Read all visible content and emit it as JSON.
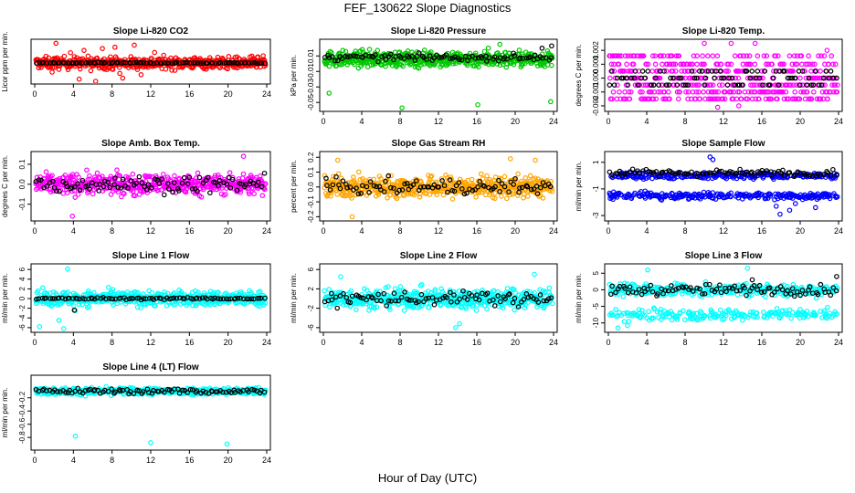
{
  "figure": {
    "title": "FEF_130622  Slope Diagnostics",
    "xlabel": "Hour of Day (UTC)"
  },
  "chart_data": [
    {
      "type": "scatter",
      "title": "Slope Li-820 CO2",
      "ylabel": "Licor ppm per min.",
      "xlim": [
        0,
        24
      ],
      "ylim": [
        -7,
        8
      ],
      "xticks": [
        0,
        4,
        8,
        12,
        16,
        20,
        24
      ],
      "yticks": [],
      "ytick_labels": [],
      "series": [
        {
          "color": "#ff0000",
          "spread": 2.2,
          "x": [
            2.2,
            4.6,
            5.1,
            6.3,
            7.0,
            8.3,
            9.1,
            10.3,
            11.0,
            12.4,
            1.8,
            3.7,
            5.8,
            8.8
          ],
          "y": [
            7.5,
            -6.2,
            4.8,
            -7.0,
            5.5,
            6.0,
            -5.8,
            6.8,
            -4.5,
            4.0,
            -3.5,
            3.9,
            -3.0,
            -4.0
          ]
        },
        {
          "color": "#000000",
          "spread": 0.2,
          "x": [
            4.0,
            12.0,
            20.0
          ],
          "y": [
            0,
            0,
            0
          ]
        }
      ]
    },
    {
      "type": "scatter",
      "title": "Slope Li-820 Pressure",
      "ylabel": "kPa per min.",
      "xlim": [
        0,
        24
      ],
      "ylim": [
        -0.058,
        0.028
      ],
      "xticks": [
        0,
        4,
        8,
        12,
        16,
        20,
        24
      ],
      "yticks": [
        -0.05,
        -0.03,
        -0.01,
        0.01
      ],
      "ytick_labels": [
        "-0.05",
        "-0.03",
        "-0.01",
        "0.01"
      ],
      "series": [
        {
          "color": "#00c800",
          "spread": 0.01,
          "x": [
            0.6,
            8.2,
            16.1,
            18.4,
            23.7,
            17.2
          ],
          "y": [
            -0.038,
            -0.057,
            -0.053,
            0.025,
            -0.049,
            0.02
          ],
          "center": 0.006
        },
        {
          "color": "#000000",
          "spread": 0.004,
          "x": [
            23.8,
            22.8
          ],
          "y": [
            0.023,
            0.02
          ],
          "center": 0.008
        }
      ]
    },
    {
      "type": "scatter",
      "title": "Slope Li-820 Temp.",
      "ylabel": "degrees C per min.",
      "xlim": [
        0,
        24
      ],
      "ylim": [
        -0.0022,
        0.0026
      ],
      "xticks": [
        0,
        4,
        8,
        12,
        16,
        20,
        24
      ],
      "yticks": [
        -0.002,
        -0.001,
        0,
        0.001,
        0.002
      ],
      "ytick_labels": [
        "-0.002",
        "-0.001",
        "0.000",
        "0.001",
        "0.002"
      ],
      "series": [
        {
          "color": "#ff00ff",
          "levels": [
            -0.0015,
            -0.001,
            -0.0005,
            0,
            0.0005,
            0.001,
            0.0016
          ],
          "x": [
            10.0,
            12.8,
            15.3,
            11.4,
            22.8,
            13.6
          ],
          "y": [
            0.0025,
            0.0025,
            0.0025,
            -0.0021,
            0.002,
            -0.002
          ]
        },
        {
          "color": "#000000",
          "levels": [
            -0.0005,
            0,
            0.0005
          ],
          "x": [],
          "y": []
        }
      ]
    },
    {
      "type": "scatter",
      "title": "Slope Amb. Box Temp.",
      "ylabel": "degrees C per min.",
      "xlim": [
        0,
        24
      ],
      "ylim": [
        -0.17,
        0.15
      ],
      "xticks": [
        0,
        4,
        8,
        12,
        16,
        20,
        24
      ],
      "yticks": [
        -0.1,
        0,
        0.1
      ],
      "ytick_labels": [
        "-0.1",
        "0.0",
        "0.1"
      ],
      "series": [
        {
          "color": "#ff00ff",
          "spread": 0.05,
          "x": [
            3.9,
            21.6
          ],
          "y": [
            -0.16,
            0.14
          ]
        },
        {
          "color": "#000000",
          "spread": 0.04,
          "x": [],
          "y": []
        }
      ]
    },
    {
      "type": "scatter",
      "title": "Slope Gas Stream RH",
      "ylabel": "percent per min.",
      "xlim": [
        0,
        24
      ],
      "ylim": [
        -0.21,
        0.22
      ],
      "xticks": [
        0,
        4,
        8,
        12,
        16,
        20,
        24
      ],
      "yticks": [
        -0.2,
        -0.1,
        0,
        0.1,
        0.2
      ],
      "ytick_labels": [
        "-0.2",
        "-0.1",
        "0.0",
        "0.1",
        "0.2"
      ],
      "series": [
        {
          "color": "#ffa500",
          "spread": 0.07,
          "x": [
            3.0,
            1.5,
            19.5,
            22.1
          ],
          "y": [
            -0.2,
            0.18,
            0.19,
            0.18
          ]
        },
        {
          "color": "#000000",
          "spread": 0.05,
          "x": [],
          "y": []
        }
      ]
    },
    {
      "type": "scatter",
      "title": "Slope Sample Flow",
      "ylabel": "ml/min per min.",
      "xlim": [
        0,
        24
      ],
      "ylim": [
        -3.2,
        1.6
      ],
      "xticks": [
        0,
        4,
        8,
        12,
        16,
        20,
        24
      ],
      "yticks": [
        -3,
        -1,
        1
      ],
      "ytick_labels": [
        "-3",
        "-1",
        "1"
      ],
      "series": [
        {
          "color": "#0000ff",
          "bands": [
            0,
            -1.5
          ],
          "spread": 0.25,
          "x": [
            10.6,
            10.9,
            17.9,
            18.9,
            19.5,
            21.6,
            17.5
          ],
          "y": [
            1.4,
            1.2,
            -2.9,
            -2.6,
            -2.1,
            -2.4,
            -2.3
          ]
        },
        {
          "color": "#000000",
          "bands": [
            0.2
          ],
          "spread": 0.25,
          "x": [],
          "y": []
        }
      ]
    },
    {
      "type": "scatter",
      "title": "Slope Line 1 Flow",
      "ylabel": "ml/min per min.",
      "xlim": [
        0,
        24
      ],
      "ylim": [
        -6.4,
        6.6
      ],
      "xticks": [
        0,
        4,
        8,
        12,
        16,
        20,
        24
      ],
      "yticks": [
        -6,
        -4,
        -2,
        0,
        2,
        4,
        6
      ],
      "ytick_labels": [
        "-6",
        "-4",
        "-2",
        "0",
        "2",
        "4",
        "6"
      ],
      "series": [
        {
          "color": "#00ffff",
          "spread": 1.5,
          "x": [
            3.4,
            3.0,
            0.5,
            2.5,
            4.2
          ],
          "y": [
            6.1,
            -6.2,
            -5.8,
            -4.5,
            -2.5
          ]
        },
        {
          "color": "#000000",
          "spread": 0.2,
          "x": [
            4.1
          ],
          "y": [
            -2.4
          ]
        }
      ]
    },
    {
      "type": "scatter",
      "title": "Slope Line 2 Flow",
      "ylabel": "ml/min per min.",
      "xlim": [
        0,
        24
      ],
      "ylim": [
        -6.4,
        6.6
      ],
      "xticks": [
        0,
        4,
        8,
        12,
        16,
        20,
        24
      ],
      "yticks": [
        -6,
        -2,
        2,
        6
      ],
      "ytick_labels": [
        "-6",
        "-2",
        "2",
        "6"
      ],
      "series": [
        {
          "color": "#00ffff",
          "spread": 2.0,
          "x": [
            1.8,
            13.8,
            14.2,
            22.0
          ],
          "y": [
            4.5,
            -6.0,
            -5.2,
            5.0
          ]
        },
        {
          "color": "#000000",
          "spread": 1.5,
          "x": [],
          "y": []
        }
      ]
    },
    {
      "type": "scatter",
      "title": "Slope Line 3 Flow",
      "ylabel": "ml/min per min.",
      "xlim": [
        0,
        24
      ],
      "ylim": [
        -12,
        7
      ],
      "xticks": [
        0,
        4,
        8,
        12,
        16,
        20,
        24
      ],
      "yticks": [
        -10,
        -5,
        0,
        5
      ],
      "ytick_labels": [
        "-10",
        "-5",
        "0",
        "5"
      ],
      "series": [
        {
          "color": "#00ffff",
          "spread": 1.8,
          "lower": -7.5,
          "x": [
            4.1,
            14.5,
            1.0,
            2.0
          ],
          "y": [
            6.0,
            6.5,
            -11.5,
            -10.8
          ]
        },
        {
          "color": "#000000",
          "spread": 1.6,
          "x": [
            23.8,
            15.0
          ],
          "y": [
            4.0,
            3.0
          ]
        }
      ]
    },
    {
      "type": "scatter",
      "title": "Slope Line 4 (LT) Flow",
      "ylabel": "ml/min per min.",
      "xlim": [
        0,
        24
      ],
      "ylim": [
        -0.95,
        0.1
      ],
      "xticks": [
        0,
        4,
        8,
        12,
        16,
        20,
        24
      ],
      "yticks": [
        -0.8,
        -0.6,
        -0.4,
        -0.2
      ],
      "ytick_labels": [
        "-0.8",
        "-0.6",
        "-0.4",
        "-0.2"
      ],
      "series": [
        {
          "color": "#00ffff",
          "spread": 0.05,
          "center": -0.1,
          "x": [
            4.2,
            12.0,
            19.9
          ],
          "y": [
            -0.78,
            -0.88,
            -0.9
          ]
        },
        {
          "color": "#000000",
          "spread": 0.04,
          "center": -0.1,
          "x": [],
          "y": []
        }
      ]
    }
  ]
}
